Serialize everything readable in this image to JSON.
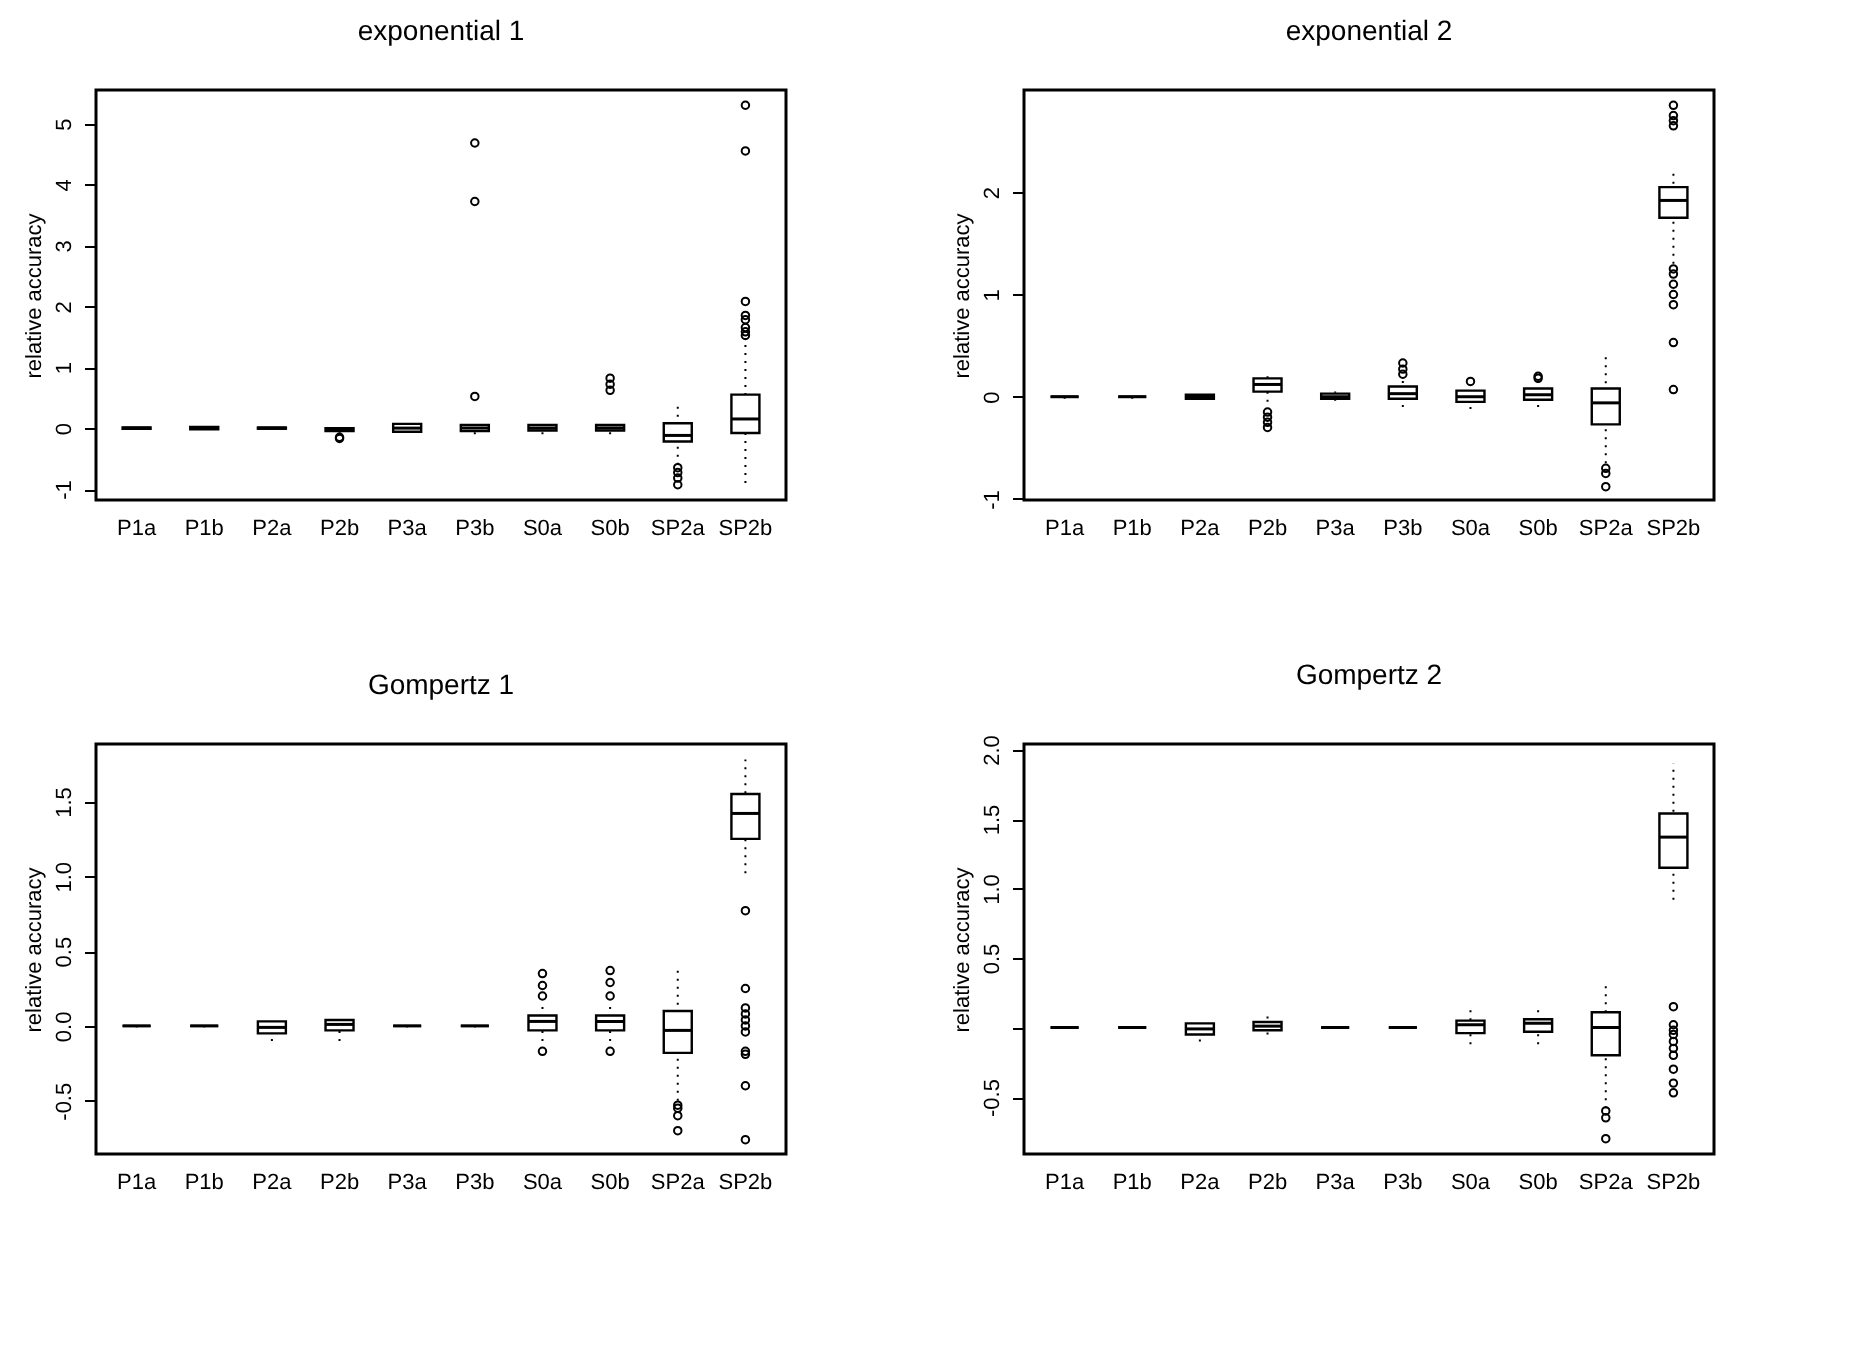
{
  "chart_data": [
    {
      "type": "box",
      "title": "exponential 1",
      "ylabel": "relative accuracy",
      "categories": [
        "P1a",
        "P1b",
        "P2a",
        "P2b",
        "P3a",
        "P3b",
        "S0a",
        "S0b",
        "SP2a",
        "SP2b"
      ],
      "ylim": [
        -1.18,
        5.55
      ],
      "yticks": [
        -1,
        0,
        1,
        2,
        3,
        4,
        5
      ],
      "boxes": [
        {
          "low": -0.02,
          "q1": -0.01,
          "median": 0,
          "q3": 0.01,
          "high": 0.02
        },
        {
          "low": -0.03,
          "q1": -0.02,
          "median": 0,
          "q3": 0.02,
          "high": 0.04
        },
        {
          "low": -0.02,
          "q1": -0.01,
          "median": 0,
          "q3": 0.01,
          "high": 0.02
        },
        {
          "low": -0.1,
          "q1": -0.05,
          "median": -0.02,
          "q3": 0,
          "high": 0.02,
          "outliers": [
            -0.15,
            -0.17
          ]
        },
        {
          "low": -0.08,
          "q1": -0.06,
          "median": 0,
          "q3": 0.07,
          "high": 0.09
        },
        {
          "low": -0.1,
          "q1": -0.05,
          "median": 0,
          "q3": 0.05,
          "high": 0.1,
          "outliers": [
            0.52,
            3.72,
            4.68
          ]
        },
        {
          "low": -0.1,
          "q1": -0.04,
          "median": 0,
          "q3": 0.05,
          "high": 0.1
        },
        {
          "low": -0.1,
          "q1": -0.04,
          "median": 0,
          "q3": 0.05,
          "high": 0.1,
          "outliers": [
            0.62,
            0.72,
            0.82
          ]
        },
        {
          "low": -0.6,
          "q1": -0.22,
          "median": -0.12,
          "q3": 0.08,
          "high": 0.45,
          "outliers": [
            -0.65,
            -0.73,
            -0.82,
            -0.93
          ]
        },
        {
          "low": -0.9,
          "q1": -0.08,
          "median": 0.15,
          "q3": 0.55,
          "high": 1.48,
          "outliers": [
            1.52,
            1.58,
            1.65,
            1.78,
            1.85,
            2.08,
            4.55,
            5.3
          ]
        }
      ]
    },
    {
      "type": "box",
      "title": "exponential 2",
      "ylabel": "relative accuracy",
      "categories": [
        "P1a",
        "P1b",
        "P2a",
        "P2b",
        "P3a",
        "P3b",
        "S0a",
        "S0b",
        "SP2a",
        "SP2b"
      ],
      "ylim": [
        -1.01,
        3.0
      ],
      "yticks": [
        -1,
        0,
        1,
        2
      ],
      "boxes": [
        {
          "low": -0.02,
          "q1": 0,
          "median": 0,
          "q3": 0,
          "high": 0.02
        },
        {
          "low": -0.02,
          "q1": 0,
          "median": 0,
          "q3": 0,
          "high": 0.02
        },
        {
          "low": -0.03,
          "q1": -0.02,
          "median": 0,
          "q3": 0.02,
          "high": 0.03
        },
        {
          "low": -0.05,
          "q1": 0.05,
          "median": 0.12,
          "q3": 0.18,
          "high": 0.2,
          "outliers": [
            -0.15,
            -0.2,
            -0.25,
            -0.3
          ]
        },
        {
          "low": -0.04,
          "q1": -0.02,
          "median": 0,
          "q3": 0.03,
          "high": 0.05
        },
        {
          "low": -0.1,
          "q1": -0.02,
          "median": 0.03,
          "q3": 0.1,
          "high": 0.18,
          "outliers": [
            0.22,
            0.27,
            0.33
          ]
        },
        {
          "low": -0.12,
          "q1": -0.05,
          "median": 0,
          "q3": 0.06,
          "high": 0.12,
          "outliers": [
            0.15
          ]
        },
        {
          "low": -0.1,
          "q1": -0.03,
          "median": 0.02,
          "q3": 0.08,
          "high": 0.15,
          "outliers": [
            0.18,
            0.2
          ]
        },
        {
          "low": -0.65,
          "q1": -0.27,
          "median": -0.06,
          "q3": 0.08,
          "high": 0.4,
          "outliers": [
            -0.7,
            -0.75,
            -0.88
          ]
        },
        {
          "low": 1.3,
          "q1": 1.75,
          "median": 1.92,
          "q3": 2.05,
          "high": 2.2,
          "outliers": [
            0.07,
            0.53,
            0.9,
            1.0,
            1.1,
            1.2,
            1.25,
            2.65,
            2.7,
            2.75,
            2.85
          ]
        }
      ]
    },
    {
      "type": "box",
      "title": "Gompertz 1",
      "ylabel": "relative accuracy",
      "categories": [
        "P1a",
        "P1b",
        "P2a",
        "P2b",
        "P3a",
        "P3b",
        "S0a",
        "S0b",
        "SP2a",
        "SP2b"
      ],
      "ylim": [
        -0.856,
        1.884
      ],
      "yticks": [
        {
          "value": -0.5,
          "label": "-0.5"
        },
        {
          "value": 0,
          "label": "0.0"
        },
        {
          "value": 0.5,
          "label": "0.5"
        },
        {
          "value": 1,
          "label": "1.0"
        },
        {
          "value": 1.5,
          "label": "1.5"
        }
      ],
      "boxes": [
        {
          "low": -0.01,
          "q1": 0,
          "median": 0,
          "q3": 0,
          "high": 0.01
        },
        {
          "low": -0.01,
          "q1": 0,
          "median": 0,
          "q3": 0,
          "high": 0.01
        },
        {
          "low": -0.1,
          "q1": -0.05,
          "median": -0.01,
          "q3": 0.03,
          "high": 0.06
        },
        {
          "low": -0.1,
          "q1": -0.03,
          "median": 0.01,
          "q3": 0.04,
          "high": 0.06
        },
        {
          "low": -0.01,
          "q1": 0,
          "median": 0,
          "q3": 0,
          "high": 0.01
        },
        {
          "low": -0.01,
          "q1": 0,
          "median": 0,
          "q3": 0,
          "high": 0.01
        },
        {
          "low": -0.1,
          "q1": -0.03,
          "median": 0.03,
          "q3": 0.07,
          "high": 0.15,
          "outliers": [
            -0.17,
            0.2,
            0.27,
            0.35
          ]
        },
        {
          "low": -0.1,
          "q1": -0.03,
          "median": 0.03,
          "q3": 0.07,
          "high": 0.15,
          "outliers": [
            -0.17,
            0.2,
            0.29,
            0.37
          ]
        },
        {
          "low": -0.5,
          "q1": -0.18,
          "median": -0.03,
          "q3": 0.1,
          "high": 0.37,
          "outliers": [
            -0.53,
            -0.55,
            -0.6,
            -0.7
          ]
        },
        {
          "low": 1.02,
          "q1": 1.25,
          "median": 1.42,
          "q3": 1.55,
          "high": 1.78,
          "outliers": [
            -0.76,
            -0.4,
            -0.19,
            -0.17,
            -0.04,
            0,
            0.04,
            0.08,
            0.12,
            0.25,
            0.77
          ]
        }
      ]
    },
    {
      "type": "box",
      "title": "Gompertz 2",
      "ylabel": "relative accuracy",
      "categories": [
        "P1a",
        "P1b",
        "P2a",
        "P2b",
        "P3a",
        "P3b",
        "S0a",
        "S0b",
        "SP2a",
        "SP2b"
      ],
      "ylim": [
        -0.91,
        2.04
      ],
      "yticks": [
        {
          "value": -0.5,
          "label": "-0.5"
        },
        {
          "value": 0,
          "label": null
        },
        {
          "value": 0.5,
          "label": "0.5"
        },
        {
          "value": 1,
          "label": "1.0"
        },
        {
          "value": 1.5,
          "label": "1.5"
        },
        {
          "value": 2,
          "label": "2.0"
        }
      ],
      "boxes": [
        {
          "low": -0.01,
          "q1": 0,
          "median": 0,
          "q3": 0,
          "high": 0.01
        },
        {
          "low": -0.01,
          "q1": 0,
          "median": 0,
          "q3": 0,
          "high": 0.01
        },
        {
          "low": -0.1,
          "q1": -0.05,
          "median": -0.01,
          "q3": 0.03,
          "high": 0.07
        },
        {
          "low": -0.05,
          "q1": -0.02,
          "median": 0.01,
          "q3": 0.04,
          "high": 0.08
        },
        {
          "low": -0.01,
          "q1": 0,
          "median": 0,
          "q3": 0,
          "high": 0.01
        },
        {
          "low": -0.01,
          "q1": 0,
          "median": 0,
          "q3": 0,
          "high": 0.01
        },
        {
          "low": -0.12,
          "q1": -0.04,
          "median": 0.02,
          "q3": 0.05,
          "high": 0.15
        },
        {
          "low": -0.12,
          "q1": -0.03,
          "median": 0.03,
          "q3": 0.06,
          "high": 0.15
        },
        {
          "low": -0.58,
          "q1": -0.2,
          "median": 0,
          "q3": 0.11,
          "high": 0.34,
          "outliers": [
            -0.6,
            -0.65,
            -0.8
          ]
        },
        {
          "low": 0.92,
          "q1": 1.15,
          "median": 1.37,
          "q3": 1.54,
          "high": 1.9,
          "outliers": [
            -0.47,
            -0.4,
            -0.3,
            -0.2,
            -0.15,
            -0.1,
            -0.05,
            -0.02,
            0.02,
            0.15
          ]
        }
      ]
    }
  ]
}
